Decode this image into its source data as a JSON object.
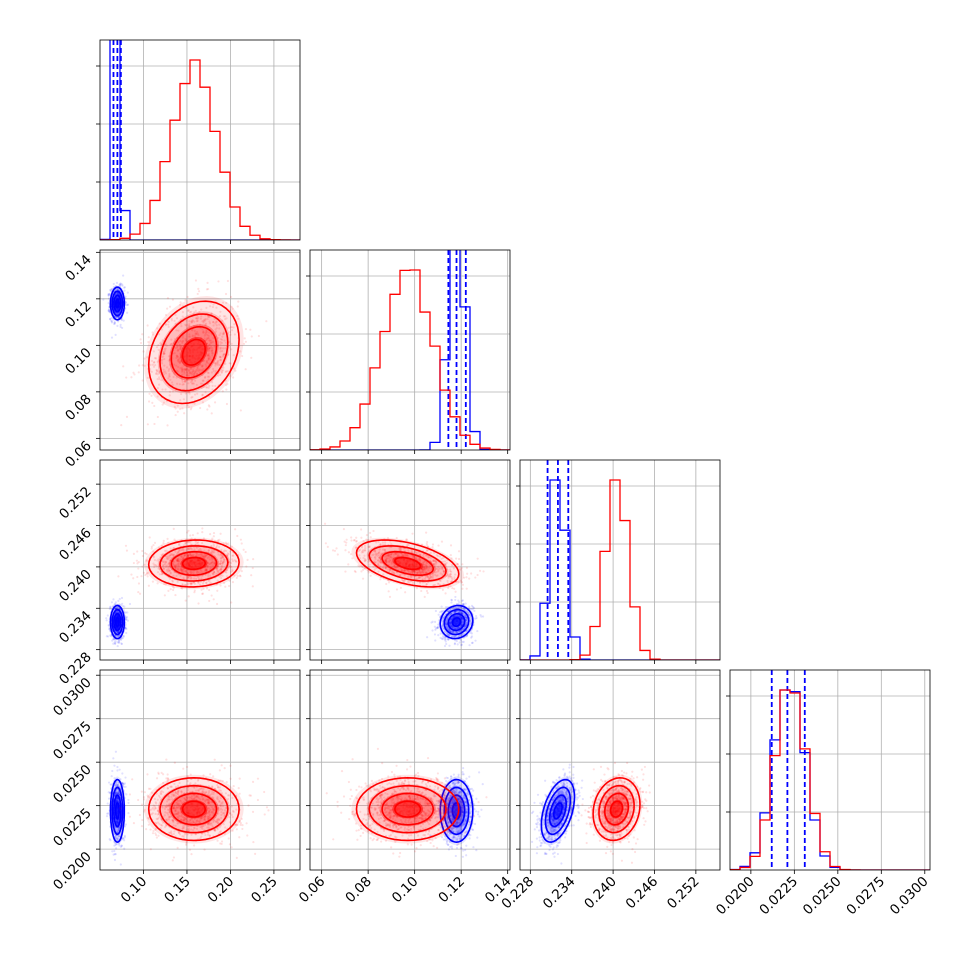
{
  "colors": {
    "series_a": "#0000ff",
    "series_b": "#ff0000",
    "grid": "#b0b0b0"
  },
  "chart_data": {
    "type": "corner",
    "grid": true,
    "parameters": [
      {
        "range": [
          0.05,
          0.28
        ],
        "ticks": [
          0.1,
          0.15,
          0.2,
          0.25
        ],
        "tick_labels": [
          "0.10",
          "0.15",
          "0.20",
          "0.25"
        ]
      },
      {
        "range": [
          0.055,
          0.141
        ],
        "ticks": [
          0.06,
          0.08,
          0.1,
          0.12,
          0.14
        ],
        "tick_labels": [
          "0.06",
          "0.08",
          "0.10",
          "0.12",
          "0.14"
        ]
      },
      {
        "range": [
          0.2265,
          0.2555
        ],
        "ticks": [
          0.228,
          0.234,
          0.24,
          0.246,
          0.252
        ],
        "tick_labels": [
          "0.228",
          "0.234",
          "0.240",
          "0.246",
          "0.252"
        ]
      },
      {
        "range": [
          0.0188,
          0.0303
        ],
        "ticks": [
          0.02,
          0.0225,
          0.025,
          0.0275,
          0.03
        ],
        "tick_labels": [
          "0.0200",
          "0.0225",
          "0.0250",
          "0.0275",
          "0.0300"
        ]
      }
    ],
    "series": [
      {
        "color": "#0000ff",
        "mean": [
          0.07,
          0.118,
          0.232,
          0.0222
        ],
        "sd": [
          0.004,
          0.0035,
          0.0012,
          0.0009
        ],
        "corr": [
          [
            0,
            1,
            0.0
          ],
          [
            0,
            2,
            0.0
          ],
          [
            0,
            3,
            0.0
          ],
          [
            1,
            2,
            0.1
          ],
          [
            1,
            3,
            0.0
          ],
          [
            2,
            3,
            0.45
          ]
        ],
        "quantiles": [
          [
            0.0655,
            0.07,
            0.074
          ],
          [
            0.1145,
            0.118,
            0.122
          ],
          [
            0.2305,
            0.232,
            0.2335
          ],
          [
            0.0212,
            0.0221,
            0.0231
          ]
        ]
      },
      {
        "color": "#ff0000",
        "mean": [
          0.158,
          0.097,
          0.2405,
          0.0223
        ],
        "sd": [
          0.026,
          0.011,
          0.0017,
          0.0009
        ],
        "corr": [
          [
            0,
            1,
            0.25
          ],
          [
            0,
            2,
            0.05
          ],
          [
            0,
            3,
            0.0
          ],
          [
            1,
            2,
            -0.45
          ],
          [
            1,
            3,
            0.0
          ],
          [
            2,
            3,
            0.15
          ]
        ]
      }
    ]
  }
}
